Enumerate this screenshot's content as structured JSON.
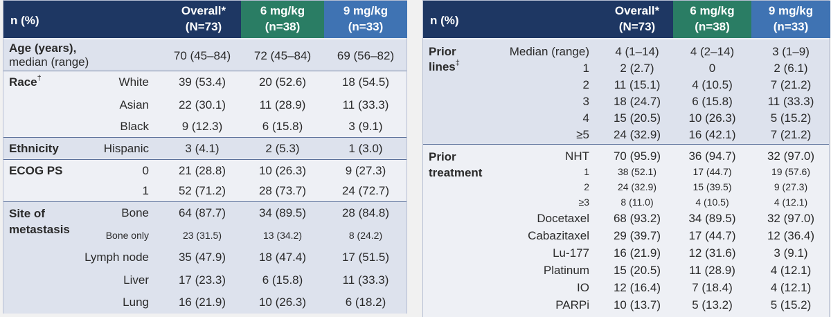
{
  "left": {
    "header": {
      "label": "n (%)",
      "overall": [
        "Overall*",
        "(N=73)"
      ],
      "dose6": [
        "6 mg/kg",
        "(n=38)"
      ],
      "dose9": [
        "9 mg/kg",
        "(n=33)"
      ]
    },
    "age": {
      "label": "Age (years),",
      "sub": "median (range)",
      "values": [
        "70 (45–84)",
        "72 (45–84)",
        "69 (56–82)"
      ]
    },
    "race": {
      "label": "Race",
      "mark": "†",
      "rows": [
        {
          "label": "White",
          "values": [
            "39 (53.4)",
            "20 (52.6)",
            "18 (54.5)"
          ]
        },
        {
          "label": "Asian",
          "values": [
            "22 (30.1)",
            "11 (28.9)",
            "11 (33.3)"
          ]
        },
        {
          "label": "Black",
          "values": [
            "9 (12.3)",
            "6 (15.8)",
            "3 (9.1)"
          ]
        }
      ]
    },
    "ethnicity": {
      "label": "Ethnicity",
      "rows": [
        {
          "label": "Hispanic",
          "values": [
            "3 (4.1)",
            "2 (5.3)",
            "1 (3.0)"
          ]
        }
      ]
    },
    "ecog": {
      "label": "ECOG PS",
      "rows": [
        {
          "label": "0",
          "values": [
            "21 (28.8)",
            "10 (26.3)",
            "9 (27.3)"
          ]
        },
        {
          "label": "1",
          "values": [
            "52 (71.2)",
            "28 (73.7)",
            "24 (72.7)"
          ]
        }
      ]
    },
    "site": {
      "label1": "Site of",
      "label2": "metastasis",
      "rows": [
        {
          "label": "Bone",
          "values": [
            "64 (87.7)",
            "34 (89.5)",
            "28 (84.8)"
          ]
        },
        {
          "label": "Bone only",
          "values": [
            "23 (31.5)",
            "13 (34.2)",
            "8 (24.2)"
          ]
        },
        {
          "label": "Lymph node",
          "values": [
            "35 (47.9)",
            "18 (47.4)",
            "17 (51.5)"
          ]
        },
        {
          "label": "Liver",
          "values": [
            "17 (23.3)",
            "6 (15.8)",
            "11 (33.3)"
          ]
        },
        {
          "label": "Lung",
          "values": [
            "16 (21.9)",
            "10 (26.3)",
            "6 (18.2)"
          ]
        }
      ]
    }
  },
  "right": {
    "header": {
      "label": "n (%)",
      "overall": [
        "Overall*",
        "(N=73)"
      ],
      "dose6": [
        "6 mg/kg",
        "(n=38)"
      ],
      "dose9": [
        "9 mg/kg",
        "(n=33)"
      ]
    },
    "prior_lines": {
      "label1": "Prior",
      "label2": "lines",
      "mark": "‡",
      "rows": [
        {
          "label": "Median (range)",
          "values": [
            "4 (1–14)",
            "4 (2–14)",
            "3 (1–9)"
          ]
        },
        {
          "label": "1",
          "values": [
            "2 (2.7)",
            "0",
            "2 (6.1)"
          ]
        },
        {
          "label": "2",
          "values": [
            "11 (15.1)",
            "4 (10.5)",
            "7 (21.2)"
          ]
        },
        {
          "label": "3",
          "values": [
            "18 (24.7)",
            "6 (15.8)",
            "11 (33.3)"
          ]
        },
        {
          "label": "4",
          "values": [
            "15 (20.5)",
            "10 (26.3)",
            "5 (15.2)"
          ]
        },
        {
          "label": "≥5",
          "values": [
            "24 (32.9)",
            "16 (42.1)",
            "7 (21.2)"
          ]
        }
      ]
    },
    "prior_treatment": {
      "label1": "Prior",
      "label2": "treatment",
      "rows": [
        {
          "label": "NHT",
          "values": [
            "70 (95.9)",
            "36 (94.7)",
            "32 (97.0)"
          ]
        },
        {
          "label": "1",
          "values": [
            "38 (52.1)",
            "17 (44.7)",
            "19 (57.6)"
          ]
        },
        {
          "label": "2",
          "values": [
            "24 (32.9)",
            "15 (39.5)",
            "9 (27.3)"
          ]
        },
        {
          "label": "≥3",
          "values": [
            "8 (11.0)",
            "4 (10.5)",
            "4 (12.1)"
          ]
        },
        {
          "label": "Docetaxel",
          "values": [
            "68 (93.2)",
            "34 (89.5)",
            "32 (97.0)"
          ]
        },
        {
          "label": "Cabazitaxel",
          "values": [
            "29 (39.7)",
            "17 (44.7)",
            "12 (36.4)"
          ]
        },
        {
          "label": "Lu-177",
          "values": [
            "16 (21.9)",
            "12 (31.6)",
            "3 (9.1)"
          ]
        },
        {
          "label": "Platinum",
          "values": [
            "15 (20.5)",
            "11 (28.9)",
            "4 (12.1)"
          ]
        },
        {
          "label": "IO",
          "values": [
            "12 (16.4)",
            "7 (18.4)",
            "4 (12.1)"
          ]
        },
        {
          "label": "PARPi",
          "values": [
            "10 (13.7)",
            "5 (13.2)",
            "5 (15.2)"
          ]
        }
      ]
    }
  }
}
